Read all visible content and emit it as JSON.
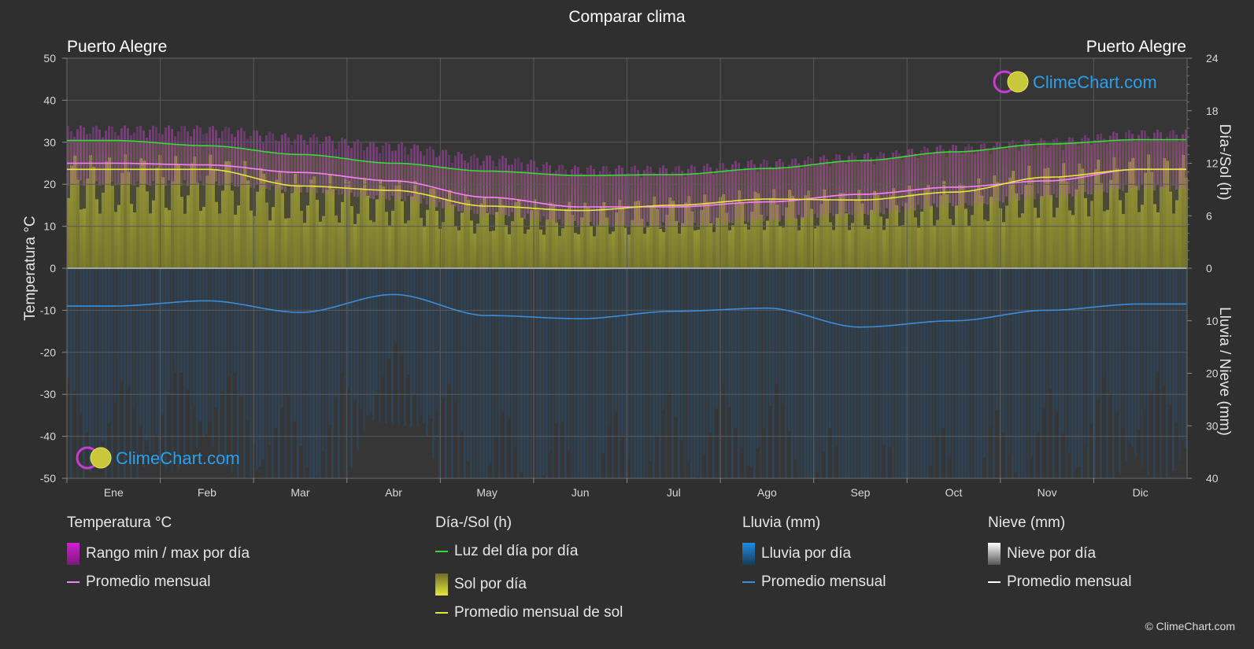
{
  "title": "Comparar clima",
  "location_left": "Puerto Alegre",
  "location_right": "Puerto Alegre",
  "brand": "ClimeChart.com",
  "copyright": "© ClimeChart.com",
  "chart_data": {
    "type": "area",
    "categories": [
      "Ene",
      "Feb",
      "Mar",
      "Abr",
      "May",
      "Jun",
      "Jul",
      "Ago",
      "Sep",
      "Oct",
      "Nov",
      "Dic"
    ],
    "axes": {
      "left": {
        "label": "Temperatura °C",
        "ticks": [
          "50",
          "40",
          "30",
          "20",
          "10",
          "0",
          "-10",
          "-20",
          "-30",
          "-40",
          "-50"
        ],
        "range": [
          -50,
          50
        ]
      },
      "right_top": {
        "label": "Día-/Sol (h)",
        "ticks": [
          "24",
          "18",
          "12",
          "6",
          "0"
        ],
        "range": [
          0,
          24
        ]
      },
      "right_bottom": {
        "label": "Lluvia / Nieve (mm)",
        "ticks": [
          "0",
          "10",
          "20",
          "30",
          "40"
        ],
        "range": [
          0,
          40
        ]
      }
    },
    "series": [
      {
        "name": "Luz del día por día",
        "unit": "h",
        "values": [
          14.6,
          14.0,
          13.0,
          12.0,
          11.1,
          10.6,
          10.7,
          11.4,
          12.3,
          13.3,
          14.2,
          14.7
        ]
      },
      {
        "name": "Promedio mensual de sol",
        "unit": "h",
        "values": [
          11.3,
          11.3,
          9.4,
          8.9,
          7.1,
          6.6,
          7.2,
          7.9,
          7.8,
          8.7,
          10.4,
          11.3
        ]
      },
      {
        "name": "Promedio mensual",
        "metric": "temperatura",
        "unit": "°C",
        "values": [
          25.0,
          24.6,
          22.8,
          20.8,
          16.9,
          14.6,
          14.6,
          15.8,
          17.6,
          19.3,
          20.8,
          23.6
        ]
      },
      {
        "name": "Rango min / max por día",
        "unit": "°C",
        "min": [
          21.0,
          21.0,
          19.5,
          17.5,
          14.0,
          11.5,
          11.0,
          12.5,
          14.0,
          16.0,
          18.0,
          20.0
        ],
        "max": [
          31.0,
          31.0,
          29.0,
          27.0,
          24.0,
          21.5,
          21.5,
          23.0,
          24.5,
          26.5,
          28.0,
          30.0
        ]
      },
      {
        "name": "Promedio mensual",
        "metric": "lluvia",
        "unit": "mm",
        "values": [
          7.2,
          6.2,
          8.4,
          5.0,
          9.0,
          9.6,
          8.2,
          7.6,
          11.2,
          10.0,
          8.0,
          6.8
        ]
      }
    ],
    "grid": true
  },
  "legend": {
    "groups": [
      {
        "title": "Temperatura °C",
        "items": [
          {
            "label": "Rango min / max por día",
            "swatch": "box",
            "color": "#d21fd2"
          },
          {
            "label": "Promedio mensual",
            "swatch": "line",
            "color": "#ff7fff"
          }
        ]
      },
      {
        "title": "Día-/Sol (h)",
        "items": [
          {
            "label": "Luz del día por día",
            "swatch": "line",
            "color": "#3ad83a"
          },
          {
            "label": "Sol por día",
            "swatch": "box",
            "color": "#c8c832"
          },
          {
            "label": "Promedio mensual de sol",
            "swatch": "line",
            "color": "#e6e63c"
          }
        ]
      },
      {
        "title": "Lluvia (mm)",
        "items": [
          {
            "label": "Lluvia por día",
            "swatch": "box",
            "color": "#1e78c8"
          },
          {
            "label": "Promedio mensual",
            "swatch": "line",
            "color": "#3c8cdc"
          }
        ]
      },
      {
        "title": "Nieve (mm)",
        "items": [
          {
            "label": "Nieve por día",
            "swatch": "box",
            "color": "#d8d8d8"
          },
          {
            "label": "Promedio mensual",
            "swatch": "line",
            "color": "#ffffff"
          }
        ]
      }
    ]
  }
}
